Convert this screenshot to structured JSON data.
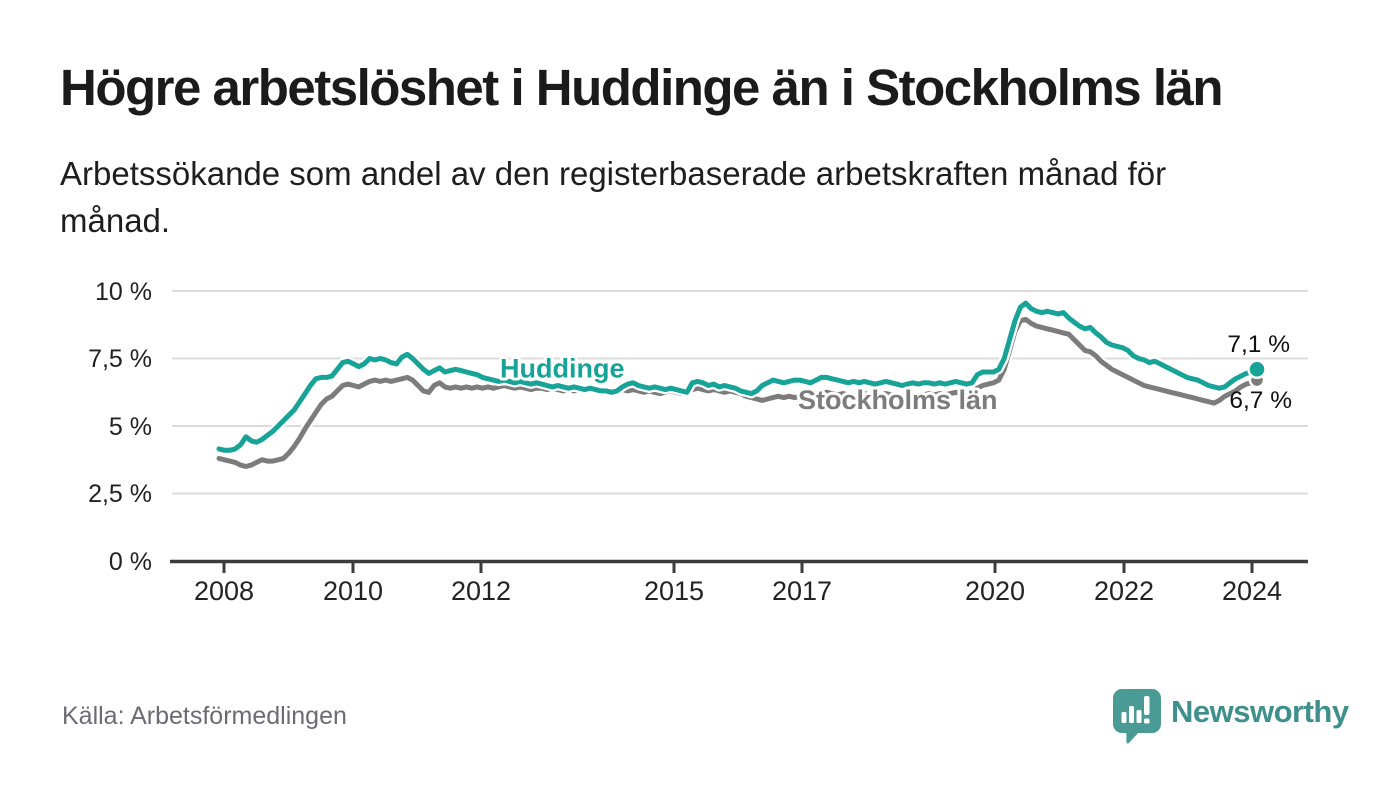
{
  "header": {
    "title": "Högre arbetslöshet i Huddinge än i Stockholms län",
    "subtitle_lines": [
      "Arbetssökande som andel av den registerbaserade arbetskraften månad för",
      "månad."
    ]
  },
  "footer": {
    "source": "Källa: Arbetsförmedlingen",
    "brand": "Newsworthy"
  },
  "colors": {
    "huddinge": "#17a398",
    "stockholm": "#7c7c7c",
    "grid": "#dcdcdc",
    "axis": "#3c3c3c",
    "annotation": "#101010",
    "brand_teal": "#4a9a96"
  },
  "chart_data": {
    "type": "line",
    "title": "Högre arbetslöshet i Huddinge än i Stockholms län",
    "subtitle": "Arbetssökande som andel av den registerbaserade arbetskraften månad för månad.",
    "source": "Källa: Arbetsförmedlingen",
    "frequency": "monthly",
    "x_range": [
      "2008-01",
      "2024-02"
    ],
    "ylim": [
      0,
      10
    ],
    "grid": true,
    "legend": "inline-labels",
    "y_tick_labels": [
      "10 %",
      "7,5 %",
      "5 %",
      "2,5 %",
      "0 %"
    ],
    "x_tick_labels": [
      "2008",
      "2010",
      "2012",
      "2015",
      "2017",
      "2020",
      "2022",
      "2024"
    ],
    "series": [
      {
        "name": "Stockholms län",
        "color": "#7c7c7c",
        "end_label": "6,7 %",
        "end_value": 6.7,
        "values": [
          3.8,
          3.75,
          3.7,
          3.65,
          3.55,
          3.5,
          3.55,
          3.65,
          3.75,
          3.7,
          3.7,
          3.75,
          3.8,
          4.0,
          4.25,
          4.55,
          4.9,
          5.2,
          5.5,
          5.8,
          6.0,
          6.1,
          6.3,
          6.5,
          6.55,
          6.5,
          6.45,
          6.55,
          6.65,
          6.7,
          6.65,
          6.7,
          6.65,
          6.7,
          6.75,
          6.8,
          6.7,
          6.5,
          6.3,
          6.25,
          6.5,
          6.6,
          6.45,
          6.4,
          6.45,
          6.4,
          6.45,
          6.4,
          6.45,
          6.4,
          6.45,
          6.4,
          6.45,
          6.5,
          6.45,
          6.4,
          6.45,
          6.4,
          6.35,
          6.4,
          6.4,
          6.35,
          6.4,
          6.35,
          6.3,
          6.35,
          6.3,
          6.35,
          6.3,
          6.35,
          6.3,
          6.35,
          6.3,
          6.25,
          6.3,
          6.35,
          6.3,
          6.35,
          6.3,
          6.25,
          6.3,
          6.25,
          6.2,
          6.25,
          6.3,
          6.25,
          6.2,
          6.25,
          6.35,
          6.4,
          6.35,
          6.3,
          6.35,
          6.3,
          6.25,
          6.3,
          6.25,
          6.2,
          6.1,
          6.05,
          6.0,
          5.95,
          6.0,
          6.05,
          6.1,
          6.05,
          6.1,
          6.05,
          6.1,
          6.05,
          6.1,
          6.15,
          6.2,
          6.25,
          6.2,
          6.15,
          6.2,
          6.15,
          6.1,
          6.15,
          6.2,
          6.15,
          6.1,
          6.15,
          6.2,
          6.15,
          6.1,
          6.05,
          6.1,
          6.15,
          6.1,
          6.15,
          6.2,
          6.15,
          6.2,
          6.15,
          6.2,
          6.25,
          6.2,
          6.15,
          6.2,
          6.4,
          6.5,
          6.55,
          6.6,
          6.7,
          7.1,
          7.8,
          8.5,
          8.9,
          8.95,
          8.8,
          8.7,
          8.65,
          8.6,
          8.55,
          8.5,
          8.45,
          8.4,
          8.2,
          8.0,
          7.8,
          7.75,
          7.6,
          7.4,
          7.25,
          7.1,
          7.0,
          6.9,
          6.8,
          6.7,
          6.6,
          6.5,
          6.45,
          6.4,
          6.35,
          6.3,
          6.25,
          6.2,
          6.15,
          6.1,
          6.05,
          6.0,
          5.95,
          5.9,
          5.85,
          5.95,
          6.1,
          6.2,
          6.3,
          6.45,
          6.55,
          6.6,
          6.7
        ]
      },
      {
        "name": "Huddinge",
        "color": "#17a398",
        "end_label": "7,1 %",
        "end_value": 7.1,
        "values": [
          4.15,
          4.1,
          4.1,
          4.15,
          4.3,
          4.6,
          4.45,
          4.4,
          4.5,
          4.65,
          4.8,
          5.0,
          5.2,
          5.4,
          5.6,
          5.9,
          6.2,
          6.5,
          6.75,
          6.8,
          6.8,
          6.85,
          7.1,
          7.35,
          7.4,
          7.3,
          7.2,
          7.3,
          7.5,
          7.45,
          7.5,
          7.45,
          7.35,
          7.3,
          7.55,
          7.65,
          7.5,
          7.3,
          7.1,
          6.95,
          7.05,
          7.15,
          7.0,
          7.05,
          7.1,
          7.05,
          7.0,
          6.95,
          6.9,
          6.8,
          6.75,
          6.7,
          6.65,
          6.7,
          6.65,
          6.6,
          6.65,
          6.6,
          6.55,
          6.6,
          6.55,
          6.5,
          6.45,
          6.5,
          6.45,
          6.4,
          6.45,
          6.4,
          6.35,
          6.4,
          6.35,
          6.3,
          6.3,
          6.25,
          6.3,
          6.45,
          6.55,
          6.6,
          6.5,
          6.45,
          6.4,
          6.45,
          6.4,
          6.35,
          6.4,
          6.35,
          6.3,
          6.25,
          6.6,
          6.65,
          6.6,
          6.5,
          6.55,
          6.45,
          6.5,
          6.45,
          6.4,
          6.3,
          6.25,
          6.2,
          6.3,
          6.5,
          6.6,
          6.7,
          6.65,
          6.6,
          6.65,
          6.7,
          6.7,
          6.65,
          6.6,
          6.7,
          6.8,
          6.8,
          6.75,
          6.7,
          6.65,
          6.6,
          6.65,
          6.6,
          6.65,
          6.6,
          6.55,
          6.6,
          6.65,
          6.6,
          6.55,
          6.5,
          6.55,
          6.6,
          6.55,
          6.6,
          6.6,
          6.55,
          6.6,
          6.55,
          6.6,
          6.65,
          6.6,
          6.55,
          6.6,
          6.9,
          7.0,
          7.0,
          7.0,
          7.1,
          7.5,
          8.2,
          8.9,
          9.4,
          9.55,
          9.35,
          9.25,
          9.2,
          9.25,
          9.2,
          9.15,
          9.2,
          9.0,
          8.85,
          8.7,
          8.6,
          8.65,
          8.45,
          8.3,
          8.1,
          8.0,
          7.95,
          7.9,
          7.8,
          7.6,
          7.5,
          7.45,
          7.35,
          7.4,
          7.3,
          7.2,
          7.1,
          7.0,
          6.9,
          6.8,
          6.75,
          6.7,
          6.6,
          6.5,
          6.45,
          6.4,
          6.45,
          6.6,
          6.75,
          6.85,
          6.95,
          7.0,
          7.1
        ]
      }
    ]
  }
}
